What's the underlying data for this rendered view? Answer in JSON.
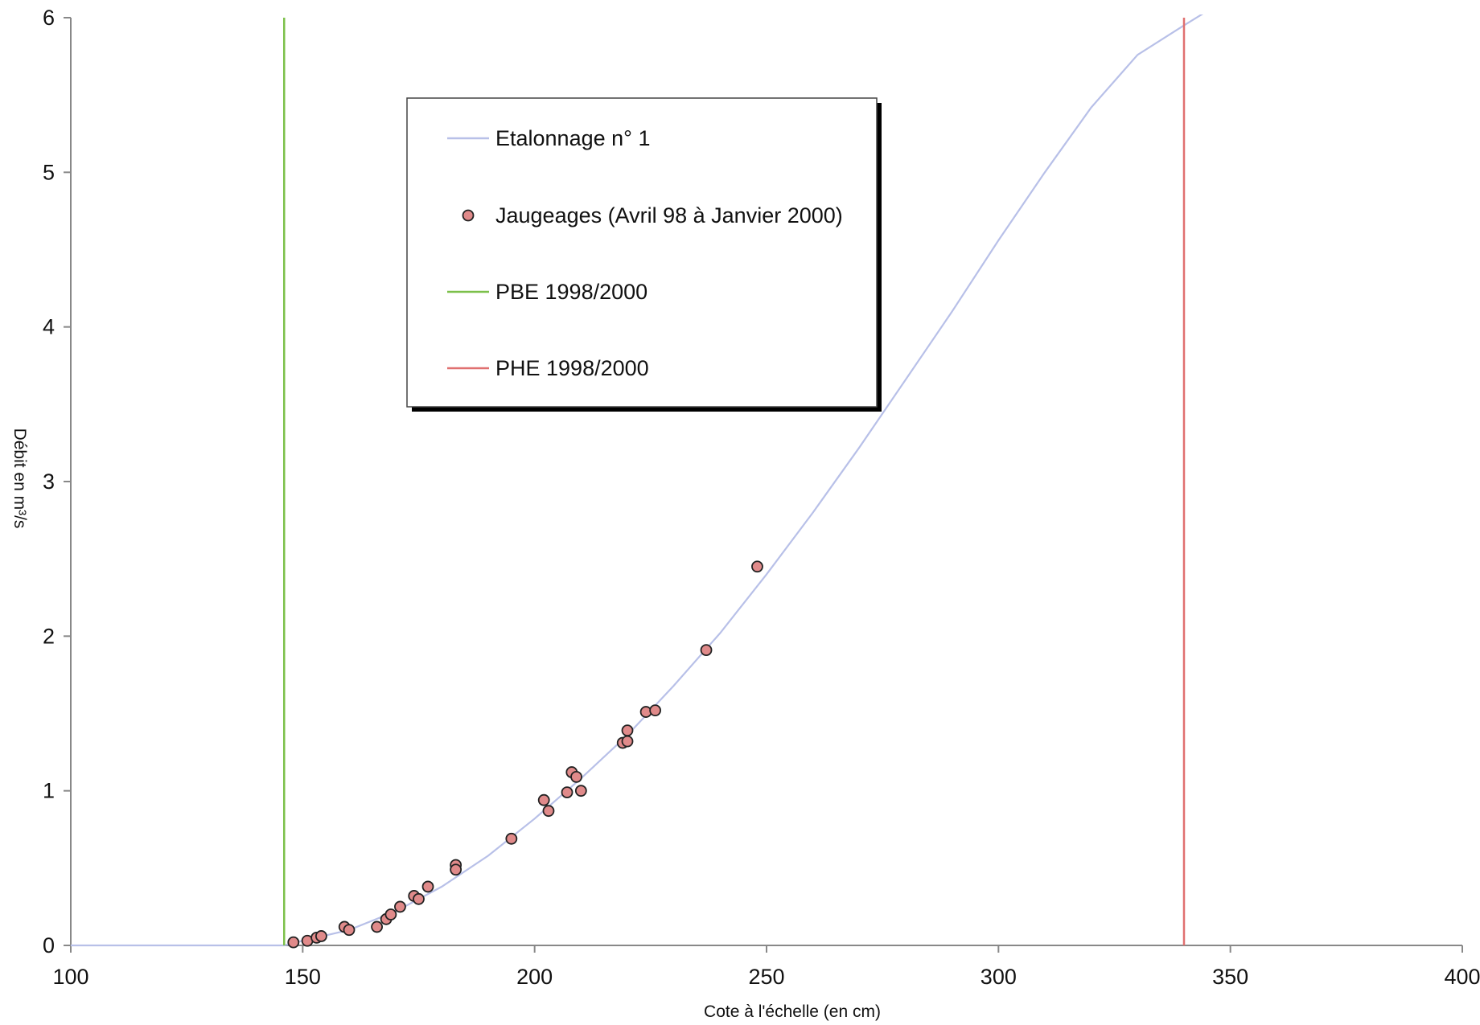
{
  "chart_data": {
    "type": "scatter",
    "xlabel": "Cote à l'échelle (en cm)",
    "ylabel": "Débit en m³/s",
    "xlim": [
      100,
      400
    ],
    "ylim": [
      0,
      6
    ],
    "x_ticks": [
      "100",
      "150",
      "200",
      "250",
      "300",
      "350",
      "400"
    ],
    "y_ticks": [
      "0",
      "1",
      "2",
      "3",
      "4",
      "5",
      "6"
    ],
    "grid": false,
    "legend_position": "upper-center",
    "series": [
      {
        "name": "Etalonnage n° 1",
        "type": "line",
        "color": "#b8c0e8",
        "x": [
          100,
          146,
          150,
          160,
          170,
          180,
          190,
          200,
          210,
          220,
          230,
          240,
          250,
          260,
          270,
          280,
          290,
          300,
          310,
          320,
          330,
          340,
          347
        ],
        "y": [
          0,
          0,
          0.03,
          0.1,
          0.22,
          0.38,
          0.58,
          0.82,
          1.08,
          1.36,
          1.68,
          2.02,
          2.4,
          2.8,
          3.22,
          3.66,
          4.1,
          4.56,
          5.0,
          5.42,
          5.76,
          5.95,
          6.08
        ]
      },
      {
        "name": "Jaugeages (Avril 98 à Janvier 2000)",
        "type": "scatter",
        "color": "#e08a8a",
        "points": [
          [
            148,
            0.02
          ],
          [
            151,
            0.03
          ],
          [
            153,
            0.05
          ],
          [
            154,
            0.06
          ],
          [
            159,
            0.12
          ],
          [
            160,
            0.1
          ],
          [
            166,
            0.12
          ],
          [
            168,
            0.17
          ],
          [
            169,
            0.2
          ],
          [
            171,
            0.25
          ],
          [
            174,
            0.32
          ],
          [
            175,
            0.3
          ],
          [
            177,
            0.38
          ],
          [
            183,
            0.52
          ],
          [
            183,
            0.49
          ],
          [
            195,
            0.69
          ],
          [
            202,
            0.94
          ],
          [
            203,
            0.87
          ],
          [
            207,
            0.99
          ],
          [
            208,
            1.12
          ],
          [
            209,
            1.09
          ],
          [
            210,
            1.0
          ],
          [
            219,
            1.31
          ],
          [
            220,
            1.39
          ],
          [
            220,
            1.32
          ],
          [
            224,
            1.51
          ],
          [
            226,
            1.52
          ],
          [
            237,
            1.91
          ],
          [
            248,
            2.45
          ]
        ]
      },
      {
        "name": "PBE 1998/2000",
        "type": "vline",
        "color": "#7cc04a",
        "x": 146
      },
      {
        "name": "PHE 1998/2000",
        "type": "vline",
        "color": "#e07070",
        "x": 340
      }
    ]
  }
}
